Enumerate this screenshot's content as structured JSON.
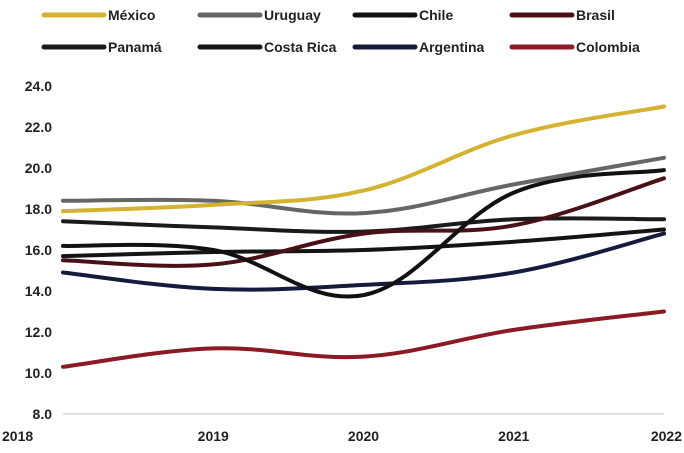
{
  "chart_data": {
    "type": "line",
    "x": [
      "2018",
      "2019",
      "2020",
      "2021",
      "2022"
    ],
    "ylim": [
      8.0,
      24.0
    ],
    "yticks": [
      "8.0",
      "10.0",
      "12.0",
      "14.0",
      "16.0",
      "18.0",
      "20.0",
      "22.0",
      "24.0"
    ],
    "grid": false,
    "legend_position": "top",
    "series": [
      {
        "name": "México",
        "color": "#D4B331",
        "values": [
          17.9,
          18.2,
          18.9,
          21.6,
          23.0
        ]
      },
      {
        "name": "Uruguay",
        "color": "#666666",
        "values": [
          18.4,
          18.4,
          17.8,
          19.2,
          20.5
        ]
      },
      {
        "name": "Chile",
        "color": "#111111",
        "values": [
          16.2,
          16.0,
          13.8,
          18.8,
          19.9
        ]
      },
      {
        "name": "Brasil",
        "color": "#4A1018",
        "values": [
          15.5,
          15.3,
          16.8,
          17.2,
          19.5
        ]
      },
      {
        "name": "Panamá",
        "color": "#1A1A1A",
        "values": [
          17.4,
          17.1,
          16.9,
          17.5,
          17.5
        ]
      },
      {
        "name": "Costa Rica",
        "color": "#141414",
        "values": [
          15.7,
          15.9,
          16.0,
          16.4,
          17.0
        ]
      },
      {
        "name": "Argentina",
        "color": "#161B3E",
        "values": [
          14.9,
          14.1,
          14.3,
          14.9,
          16.8
        ]
      },
      {
        "name": "Colombia",
        "color": "#8B1A24",
        "values": [
          10.3,
          11.2,
          10.8,
          12.1,
          13.0
        ]
      }
    ]
  }
}
